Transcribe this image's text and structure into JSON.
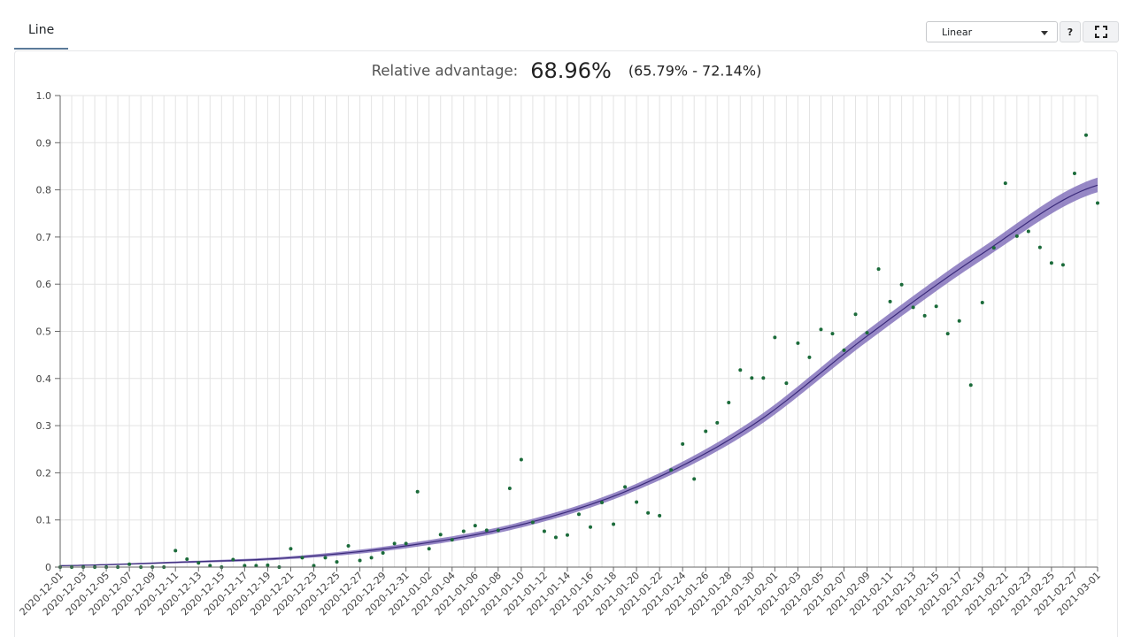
{
  "tabs": [
    {
      "label": "Line"
    }
  ],
  "scale_select": {
    "value": "Linear"
  },
  "help_label": "?",
  "headline": {
    "label": "Relative advantage:",
    "value": "68.96%",
    "ci": "(65.79% - 72.14%)"
  },
  "colors": {
    "points": "#1b6b3a",
    "fit_line": "#3a2a7a",
    "fit_band": "#7d6ab8",
    "grid": "#e3e3e3"
  },
  "chart_data": {
    "type": "scatter",
    "x_start": "2020-12-01",
    "x_end": "2021-03-01",
    "x_tick_labels": [
      "2020-12-01",
      "2020-12-03",
      "2020-12-05",
      "2020-12-07",
      "2020-12-09",
      "2020-12-11",
      "2020-12-13",
      "2020-12-15",
      "2020-12-17",
      "2020-12-19",
      "2020-12-21",
      "2020-12-23",
      "2020-12-25",
      "2020-12-27",
      "2020-12-29",
      "2020-12-31",
      "2021-01-02",
      "2021-01-04",
      "2021-01-06",
      "2021-01-08",
      "2021-01-10",
      "2021-01-12",
      "2021-01-14",
      "2021-01-16",
      "2021-01-18",
      "2021-01-20",
      "2021-01-22",
      "2021-01-24",
      "2021-01-26",
      "2021-01-28",
      "2021-01-30",
      "2021-02-01",
      "2021-02-03",
      "2021-02-05",
      "2021-02-07",
      "2021-02-09",
      "2021-02-11",
      "2021-02-13",
      "2021-02-15",
      "2021-02-17",
      "2021-02-19",
      "2021-02-21",
      "2021-02-23",
      "2021-02-25",
      "2021-02-27",
      "2021-03-01"
    ],
    "y_ticks": [
      "0",
      "0.1",
      "0.2",
      "0.3",
      "0.4",
      "0.5",
      "0.6",
      "0.7",
      "0.8",
      "0.9",
      "1.0"
    ],
    "ylim": [
      0,
      1
    ],
    "points": [
      [
        "2020-12-01",
        0.0
      ],
      [
        "2020-12-02",
        0.0
      ],
      [
        "2020-12-03",
        0.0
      ],
      [
        "2020-12-04",
        0.0
      ],
      [
        "2020-12-05",
        0.0
      ],
      [
        "2020-12-06",
        0.0
      ],
      [
        "2020-12-07",
        0.006
      ],
      [
        "2020-12-08",
        0.0
      ],
      [
        "2020-12-09",
        0.0
      ],
      [
        "2020-12-10",
        0.0
      ],
      [
        "2020-12-11",
        0.035
      ],
      [
        "2020-12-12",
        0.017
      ],
      [
        "2020-12-13",
        0.009
      ],
      [
        "2020-12-14",
        0.003
      ],
      [
        "2020-12-15",
        0.0
      ],
      [
        "2020-12-16",
        0.016
      ],
      [
        "2020-12-17",
        0.003
      ],
      [
        "2020-12-18",
        0.003
      ],
      [
        "2020-12-19",
        0.004
      ],
      [
        "2020-12-20",
        0.0
      ],
      [
        "2020-12-21",
        0.039
      ],
      [
        "2020-12-22",
        0.02
      ],
      [
        "2020-12-23",
        0.003
      ],
      [
        "2020-12-24",
        0.02
      ],
      [
        "2020-12-25",
        0.011
      ],
      [
        "2020-12-26",
        0.045
      ],
      [
        "2020-12-27",
        0.014
      ],
      [
        "2020-12-28",
        0.02
      ],
      [
        "2020-12-29",
        0.03
      ],
      [
        "2020-12-30",
        0.05
      ],
      [
        "2020-12-31",
        0.05
      ],
      [
        "2021-01-01",
        0.16
      ],
      [
        "2021-01-02",
        0.039
      ],
      [
        "2021-01-03",
        0.069
      ],
      [
        "2021-01-04",
        0.058
      ],
      [
        "2021-01-05",
        0.076
      ],
      [
        "2021-01-06",
        0.088
      ],
      [
        "2021-01-07",
        0.078
      ],
      [
        "2021-01-08",
        0.078
      ],
      [
        "2021-01-09",
        0.167
      ],
      [
        "2021-01-10",
        0.228
      ],
      [
        "2021-01-11",
        0.095
      ],
      [
        "2021-01-12",
        0.076
      ],
      [
        "2021-01-13",
        0.063
      ],
      [
        "2021-01-14",
        0.068
      ],
      [
        "2021-01-15",
        0.112
      ],
      [
        "2021-01-16",
        0.085
      ],
      [
        "2021-01-17",
        0.137
      ],
      [
        "2021-01-18",
        0.091
      ],
      [
        "2021-01-19",
        0.17
      ],
      [
        "2021-01-20",
        0.138
      ],
      [
        "2021-01-21",
        0.115
      ],
      [
        "2021-01-22",
        0.109
      ],
      [
        "2021-01-23",
        0.206
      ],
      [
        "2021-01-24",
        0.261
      ],
      [
        "2021-01-25",
        0.187
      ],
      [
        "2021-01-26",
        0.288
      ],
      [
        "2021-01-27",
        0.306
      ],
      [
        "2021-01-28",
        0.349
      ],
      [
        "2021-01-29",
        0.418
      ],
      [
        "2021-01-30",
        0.401
      ],
      [
        "2021-01-31",
        0.401
      ],
      [
        "2021-02-01",
        0.487
      ],
      [
        "2021-02-02",
        0.39
      ],
      [
        "2021-02-03",
        0.475
      ],
      [
        "2021-02-04",
        0.445
      ],
      [
        "2021-02-05",
        0.504
      ],
      [
        "2021-02-06",
        0.495
      ],
      [
        "2021-02-07",
        0.46
      ],
      [
        "2021-02-08",
        0.536
      ],
      [
        "2021-02-09",
        0.497
      ],
      [
        "2021-02-10",
        0.632
      ],
      [
        "2021-02-11",
        0.563
      ],
      [
        "2021-02-12",
        0.599
      ],
      [
        "2021-02-13",
        0.551
      ],
      [
        "2021-02-14",
        0.533
      ],
      [
        "2021-02-15",
        0.553
      ],
      [
        "2021-02-16",
        0.495
      ],
      [
        "2021-02-17",
        0.522
      ],
      [
        "2021-02-18",
        0.386
      ],
      [
        "2021-02-19",
        0.561
      ],
      [
        "2021-02-20",
        0.677
      ],
      [
        "2021-02-21",
        0.814
      ],
      [
        "2021-02-22",
        0.702
      ],
      [
        "2021-02-23",
        0.712
      ],
      [
        "2021-02-24",
        0.678
      ],
      [
        "2021-02-25",
        0.645
      ],
      [
        "2021-02-26",
        0.641
      ],
      [
        "2021-02-27",
        0.835
      ],
      [
        "2021-02-28",
        0.916
      ],
      [
        "2021-03-01",
        0.772
      ]
    ],
    "fit": {
      "x": [
        "2020-12-01",
        "2020-12-11",
        "2020-12-21",
        "2020-12-31",
        "2021-01-10",
        "2021-01-20",
        "2021-01-30",
        "2021-02-09",
        "2021-02-19",
        "2021-03-01"
      ],
      "y": [
        0.003,
        0.01,
        0.02,
        0.045,
        0.09,
        0.17,
        0.3,
        0.49,
        0.665,
        0.81
      ],
      "lower": [
        0.002,
        0.008,
        0.017,
        0.04,
        0.084,
        0.163,
        0.29,
        0.478,
        0.652,
        0.795
      ],
      "upper": [
        0.004,
        0.012,
        0.023,
        0.05,
        0.096,
        0.177,
        0.31,
        0.502,
        0.678,
        0.826
      ]
    }
  }
}
